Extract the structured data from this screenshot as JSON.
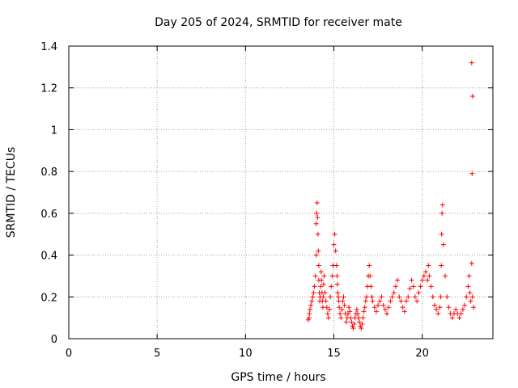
{
  "chart_data": {
    "type": "scatter",
    "title": "Day 205 of 2024, SRMTID for receiver mate",
    "xlabel": "GPS time / hours",
    "ylabel": "SRMTID / TECUs",
    "xlim": [
      0,
      24
    ],
    "ylim": [
      0,
      1.4
    ],
    "x_ticks": [
      "0",
      "5",
      "10",
      "15",
      "20"
    ],
    "x_tick_values": [
      0,
      5,
      10,
      15,
      20
    ],
    "y_ticks": [
      "0",
      "0.2",
      "0.4",
      "0.6",
      "0.8",
      "1",
      "1.2",
      "1.4"
    ],
    "y_tick_values": [
      0,
      0.2,
      0.4,
      0.6,
      0.8,
      1.0,
      1.2,
      1.4
    ],
    "grid": true,
    "marker": "+",
    "color": "#ff0000",
    "series": [
      {
        "x": [
          13.55,
          13.6,
          13.62,
          13.65,
          13.7,
          13.75,
          13.8,
          13.85,
          13.9,
          13.95,
          14.0,
          14.0,
          14.02,
          14.05,
          14.08,
          14.1,
          14.12,
          14.15,
          14.15,
          14.18,
          14.2,
          14.22,
          14.25,
          14.28,
          14.3,
          14.33,
          14.35,
          14.38,
          14.4,
          14.42,
          14.45,
          14.5,
          14.55,
          14.6,
          14.65,
          14.7,
          14.75,
          14.8,
          14.85,
          14.9,
          14.95,
          15.0,
          15.05,
          15.1,
          15.15,
          15.18,
          15.2,
          15.22,
          15.25,
          15.28,
          15.3,
          15.35,
          15.4,
          15.45,
          15.5,
          15.55,
          15.6,
          15.65,
          15.7,
          15.75,
          15.8,
          15.85,
          15.9,
          15.95,
          16.0,
          16.05,
          16.1,
          16.15,
          16.2,
          16.25,
          16.3,
          16.35,
          16.4,
          16.45,
          16.5,
          16.55,
          16.6,
          16.65,
          16.7,
          16.75,
          16.8,
          16.85,
          16.9,
          16.95,
          17.0,
          17.05,
          17.1,
          17.15,
          17.2,
          17.3,
          17.4,
          17.5,
          17.6,
          17.7,
          17.8,
          17.9,
          18.0,
          18.1,
          18.2,
          18.3,
          18.4,
          18.5,
          18.6,
          18.7,
          18.8,
          18.9,
          19.0,
          19.1,
          19.2,
          19.3,
          19.4,
          19.5,
          19.6,
          19.7,
          19.8,
          19.9,
          20.0,
          20.1,
          20.2,
          20.3,
          20.35,
          20.4,
          20.5,
          20.6,
          20.7,
          20.8,
          20.9,
          21.0,
          21.05,
          21.08,
          21.1,
          21.12,
          21.15,
          21.2,
          21.3,
          21.4,
          21.5,
          21.6,
          21.7,
          21.8,
          21.9,
          22.0,
          22.1,
          22.2,
          22.3,
          22.4,
          22.5,
          22.6,
          22.65,
          22.7,
          22.75,
          22.8,
          22.8,
          22.82,
          22.85,
          22.85,
          22.9
        ],
        "y": [
          0.09,
          0.1,
          0.12,
          0.14,
          0.16,
          0.18,
          0.2,
          0.22,
          0.25,
          0.3,
          0.4,
          0.55,
          0.6,
          0.65,
          0.58,
          0.5,
          0.42,
          0.35,
          0.28,
          0.22,
          0.18,
          0.2,
          0.25,
          0.32,
          0.28,
          0.22,
          0.18,
          0.15,
          0.2,
          0.26,
          0.3,
          0.22,
          0.18,
          0.15,
          0.12,
          0.1,
          0.14,
          0.2,
          0.25,
          0.3,
          0.35,
          0.45,
          0.5,
          0.42,
          0.35,
          0.3,
          0.26,
          0.22,
          0.2,
          0.18,
          0.15,
          0.12,
          0.1,
          0.14,
          0.18,
          0.2,
          0.16,
          0.12,
          0.08,
          0.1,
          0.12,
          0.15,
          0.13,
          0.1,
          0.08,
          0.06,
          0.05,
          0.07,
          0.1,
          0.12,
          0.14,
          0.12,
          0.1,
          0.08,
          0.06,
          0.05,
          0.07,
          0.1,
          0.13,
          0.15,
          0.18,
          0.2,
          0.25,
          0.3,
          0.35,
          0.3,
          0.25,
          0.2,
          0.18,
          0.15,
          0.13,
          0.16,
          0.18,
          0.2,
          0.16,
          0.14,
          0.12,
          0.15,
          0.18,
          0.2,
          0.22,
          0.25,
          0.28,
          0.2,
          0.18,
          0.15,
          0.13,
          0.18,
          0.2,
          0.24,
          0.28,
          0.25,
          0.2,
          0.18,
          0.22,
          0.25,
          0.28,
          0.3,
          0.32,
          0.28,
          0.35,
          0.3,
          0.25,
          0.2,
          0.16,
          0.14,
          0.12,
          0.15,
          0.2,
          0.35,
          0.5,
          0.6,
          0.64,
          0.45,
          0.3,
          0.2,
          0.15,
          0.12,
          0.1,
          0.12,
          0.14,
          0.12,
          0.1,
          0.12,
          0.14,
          0.16,
          0.2,
          0.25,
          0.3,
          0.22,
          0.18,
          0.36,
          1.32,
          0.79,
          1.16,
          0.2,
          0.15
        ]
      }
    ]
  }
}
